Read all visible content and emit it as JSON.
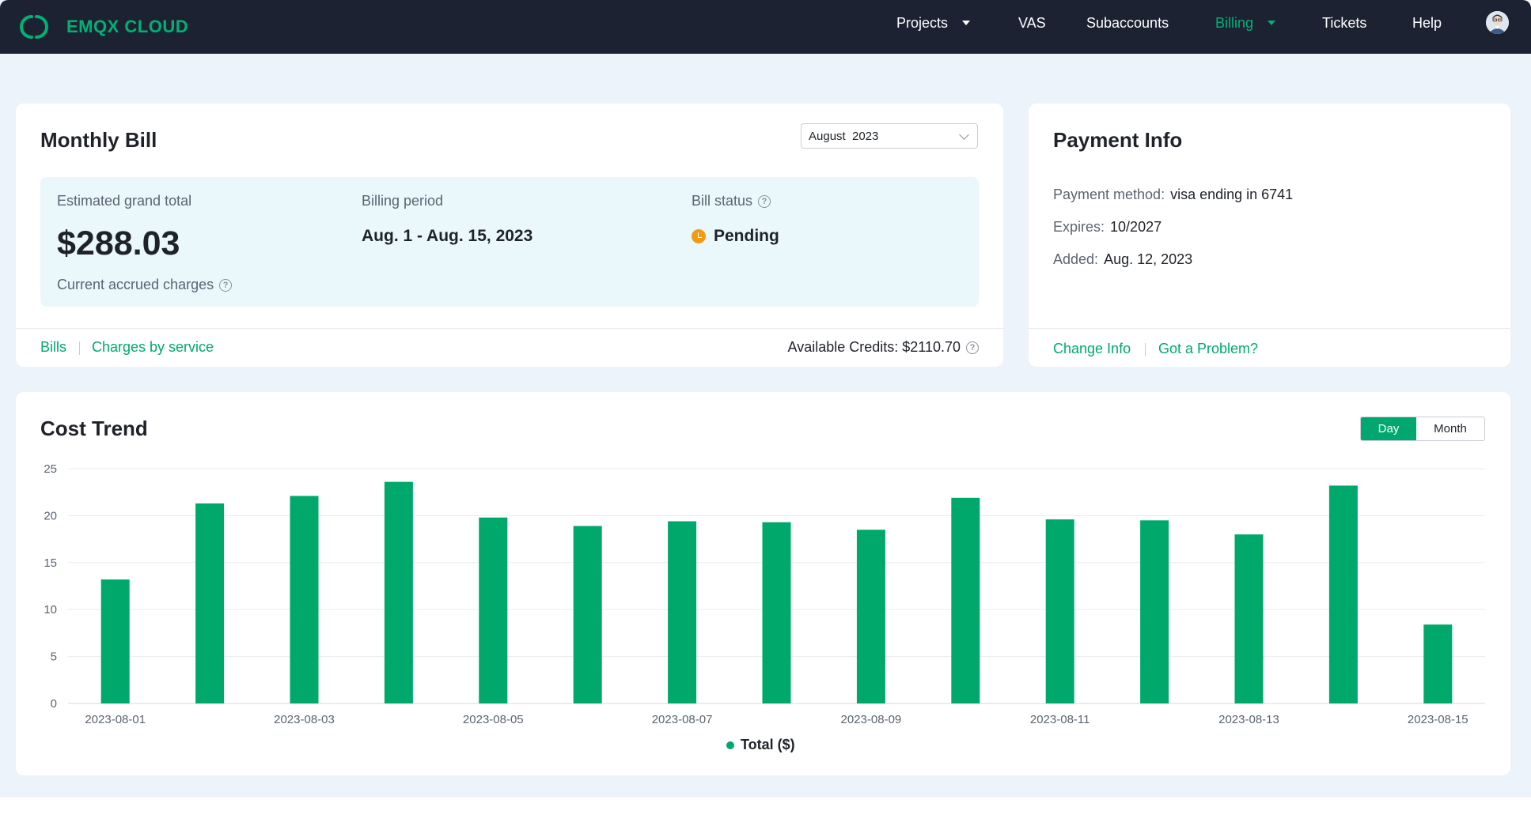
{
  "app": {
    "brand": "EMQX CLOUD"
  },
  "nav": {
    "projects": "Projects",
    "vas": "VAS",
    "subaccounts": "Subaccounts",
    "billing": "Billing",
    "tickets": "Tickets",
    "help": "Help"
  },
  "monthly_bill": {
    "title": "Monthly Bill",
    "month_select": "August  2023",
    "estimated_label": "Estimated grand total",
    "estimated_value": "$288.03",
    "accrued_label": "Current accrued charges",
    "period_label": "Billing period",
    "period_value": "Aug. 1 - Aug. 15, 2023",
    "status_label": "Bill status",
    "status_value": "Pending",
    "link_bills": "Bills",
    "link_charges": "Charges by service",
    "credits": "Available Credits: $2110.70"
  },
  "payment_info": {
    "title": "Payment Info",
    "method_label": "Payment method:",
    "method_value": "visa ending in 6741",
    "expires_label": "Expires:",
    "expires_value": "10/2027",
    "added_label": "Added:",
    "added_value": "Aug. 12, 2023",
    "link_change": "Change Info",
    "link_problem": "Got a Problem?"
  },
  "cost_trend": {
    "title": "Cost Trend",
    "toggle_day": "Day",
    "toggle_month": "Month",
    "active_toggle": "Day"
  },
  "colors": {
    "accent": "#00a870",
    "brand": "#00b173",
    "bar": "#00a86b",
    "pending": "#f39c12",
    "topbar": "#1c2232"
  },
  "chart_data": {
    "type": "bar",
    "categories": [
      "2023-08-01",
      "2023-08-02",
      "2023-08-03",
      "2023-08-04",
      "2023-08-05",
      "2023-08-06",
      "2023-08-07",
      "2023-08-08",
      "2023-08-09",
      "2023-08-10",
      "2023-08-11",
      "2023-08-12",
      "2023-08-13",
      "2023-08-14",
      "2023-08-15"
    ],
    "tick_labels_shown": [
      "2023-08-01",
      "2023-08-03",
      "2023-08-05",
      "2023-08-07",
      "2023-08-09",
      "2023-08-11",
      "2023-08-13",
      "2023-08-15"
    ],
    "series": [
      {
        "name": "Total ($)",
        "values": [
          13.2,
          21.3,
          22.1,
          23.6,
          19.8,
          18.9,
          19.4,
          19.3,
          18.5,
          21.9,
          19.6,
          19.5,
          18.0,
          23.2,
          8.4
        ]
      }
    ],
    "ylim": [
      0,
      25
    ],
    "yticks": [
      0,
      5,
      10,
      15,
      20,
      25
    ],
    "grid": true,
    "legend": "bottom-center",
    "legend_label": "Total ($)"
  }
}
